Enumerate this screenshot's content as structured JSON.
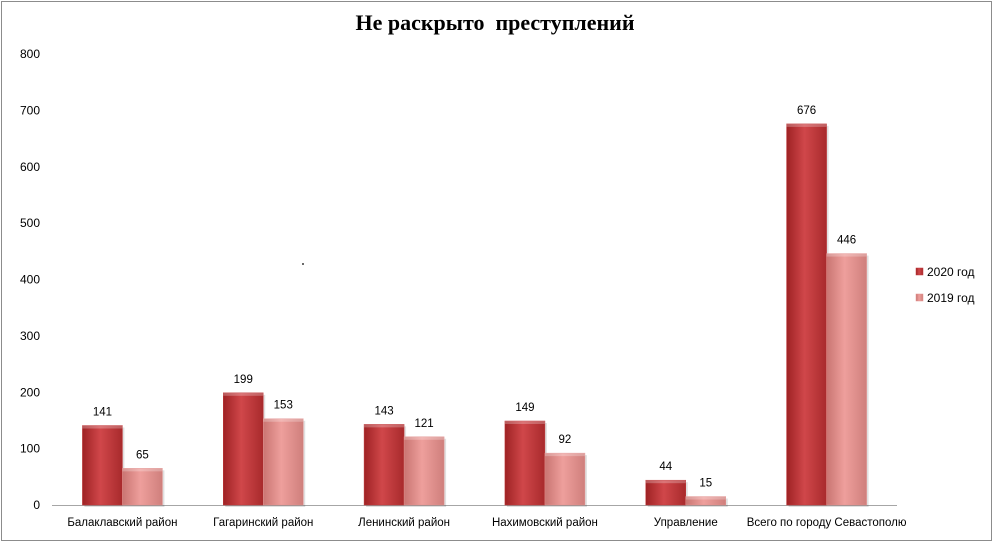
{
  "chart_data": {
    "type": "bar",
    "title": "Не раскрыто  преступлений",
    "categories": [
      "Балаклавский район",
      "Гагаринский район",
      "Ленинский район",
      "Нахимовский район",
      "Управление",
      "Всего по городу Севастополю"
    ],
    "series": [
      {
        "name": "2020 год",
        "values": [
          141,
          199,
          143,
          149,
          44,
          676
        ],
        "color": "#c0393b"
      },
      {
        "name": "2019 год",
        "values": [
          65,
          153,
          121,
          92,
          15,
          446
        ],
        "color": "#e39290"
      }
    ],
    "ylim": [
      0,
      800
    ],
    "yticks": [
      0,
      100,
      200,
      300,
      400,
      500,
      600,
      700,
      800
    ],
    "grid": false,
    "legend_position": "right",
    "data_labels": true
  }
}
